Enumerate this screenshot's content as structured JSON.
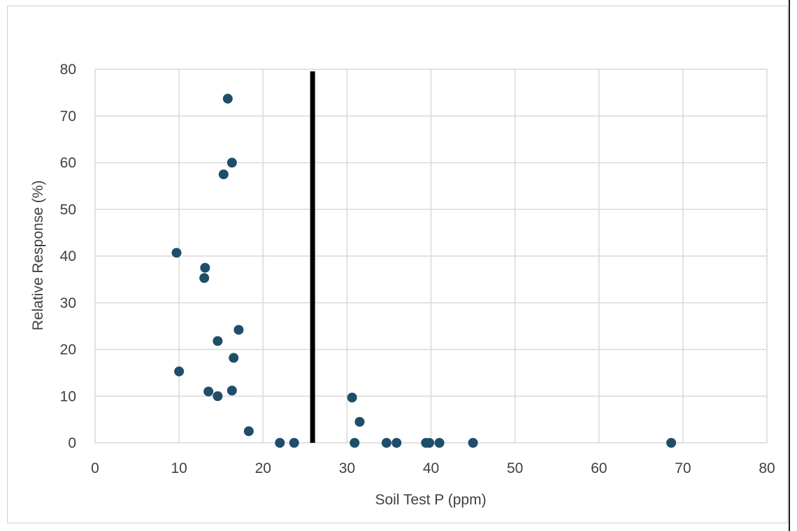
{
  "chart_data": {
    "type": "scatter",
    "title": "",
    "xlabel": "Soil Test P (ppm)",
    "ylabel": "Relative Response (%)",
    "xlim": [
      0,
      80
    ],
    "ylim": [
      0,
      80
    ],
    "x_ticks": [
      0,
      10,
      20,
      30,
      40,
      50,
      60,
      70,
      80
    ],
    "y_ticks": [
      0,
      10,
      20,
      30,
      40,
      50,
      60,
      70,
      80
    ],
    "grid": true,
    "legend": "none",
    "marker_color": "#1f4e6b",
    "reference_line": {
      "x": 25.9,
      "color": "#000000"
    },
    "series": [
      {
        "points": [
          {
            "x": 15.8,
            "y": 73.7
          },
          {
            "x": 16.3,
            "y": 60.0
          },
          {
            "x": 15.3,
            "y": 57.5
          },
          {
            "x": 9.7,
            "y": 40.7
          },
          {
            "x": 13.1,
            "y": 37.5
          },
          {
            "x": 13.0,
            "y": 35.3
          },
          {
            "x": 17.1,
            "y": 24.2
          },
          {
            "x": 14.6,
            "y": 21.8
          },
          {
            "x": 16.5,
            "y": 18.2
          },
          {
            "x": 10.0,
            "y": 15.3
          },
          {
            "x": 13.5,
            "y": 11.0
          },
          {
            "x": 16.3,
            "y": 11.2
          },
          {
            "x": 14.6,
            "y": 10.0
          },
          {
            "x": 18.3,
            "y": 2.5
          },
          {
            "x": 22.0,
            "y": 0.0
          },
          {
            "x": 23.7,
            "y": 0.0
          },
          {
            "x": 30.6,
            "y": 9.7
          },
          {
            "x": 31.5,
            "y": 4.5
          },
          {
            "x": 30.9,
            "y": 0.0
          },
          {
            "x": 34.7,
            "y": 0.0
          },
          {
            "x": 35.9,
            "y": 0.0
          },
          {
            "x": 39.4,
            "y": 0.0
          },
          {
            "x": 39.8,
            "y": 0.0
          },
          {
            "x": 41.0,
            "y": 0.0
          },
          {
            "x": 45.0,
            "y": 0.0
          },
          {
            "x": 68.6,
            "y": 0.0
          }
        ]
      }
    ]
  }
}
